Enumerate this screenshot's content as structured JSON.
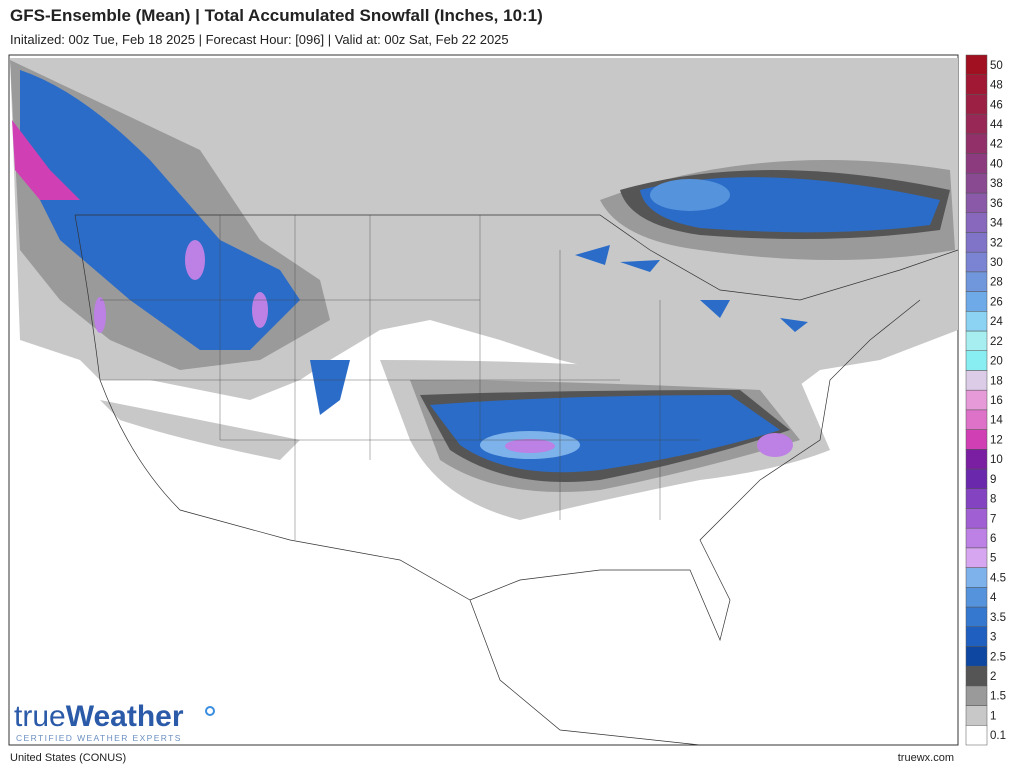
{
  "header": {
    "title": "GFS-Ensemble (Mean) | Total Accumulated Snowfall (Inches, 10:1)",
    "subtitle": "Initalized: 00z Tue, Feb 18 2025  |  Forecast Hour: [096]  |  Valid at: 00z Sat, Feb 22 2025"
  },
  "logo": {
    "brand_light": "true",
    "brand_bold": "Weather",
    "tagline": "CERTIFIED WEATHER EXPERTS"
  },
  "footer": {
    "region": "United States (CONUS)",
    "site": "truewx.com"
  },
  "legend": [
    {
      "label": "0.1",
      "color": "#ffffff"
    },
    {
      "label": "1",
      "color": "#c8c8c8"
    },
    {
      "label": "1.5",
      "color": "#9a9a9a"
    },
    {
      "label": "2",
      "color": "#555555"
    },
    {
      "label": "2.5",
      "color": "#0d47a1"
    },
    {
      "label": "3",
      "color": "#1f5fbf"
    },
    {
      "label": "3.5",
      "color": "#3478d0"
    },
    {
      "label": "4",
      "color": "#5593dc"
    },
    {
      "label": "4.5",
      "color": "#7eb2ea"
    },
    {
      "label": "5",
      "color": "#d7a6f0"
    },
    {
      "label": "6",
      "color": "#bd80e4"
    },
    {
      "label": "7",
      "color": "#a060d4"
    },
    {
      "label": "8",
      "color": "#8444c2"
    },
    {
      "label": "9",
      "color": "#6a28ac"
    },
    {
      "label": "10",
      "color": "#7b1fa2"
    },
    {
      "label": "12",
      "color": "#d040b4"
    },
    {
      "label": "14",
      "color": "#de72c8"
    },
    {
      "label": "16",
      "color": "#e69ad8"
    },
    {
      "label": "18",
      "color": "#dccce8"
    },
    {
      "label": "20",
      "color": "#88eef2"
    },
    {
      "label": "22",
      "color": "#a6eef0"
    },
    {
      "label": "24",
      "color": "#8cd2f2"
    },
    {
      "label": "26",
      "color": "#6eaae8"
    },
    {
      "label": "28",
      "color": "#7096dc"
    },
    {
      "label": "30",
      "color": "#7a84d2"
    },
    {
      "label": "32",
      "color": "#8074c8"
    },
    {
      "label": "34",
      "color": "#8868bc"
    },
    {
      "label": "36",
      "color": "#8a5aa8"
    },
    {
      "label": "38",
      "color": "#8a4a92"
    },
    {
      "label": "40",
      "color": "#8c3c7e"
    },
    {
      "label": "42",
      "color": "#92306a"
    },
    {
      "label": "44",
      "color": "#982856"
    },
    {
      "label": "46",
      "color": "#9c2044"
    },
    {
      "label": "48",
      "color": "#a01834"
    },
    {
      "label": "50",
      "color": "#a01020"
    }
  ]
}
